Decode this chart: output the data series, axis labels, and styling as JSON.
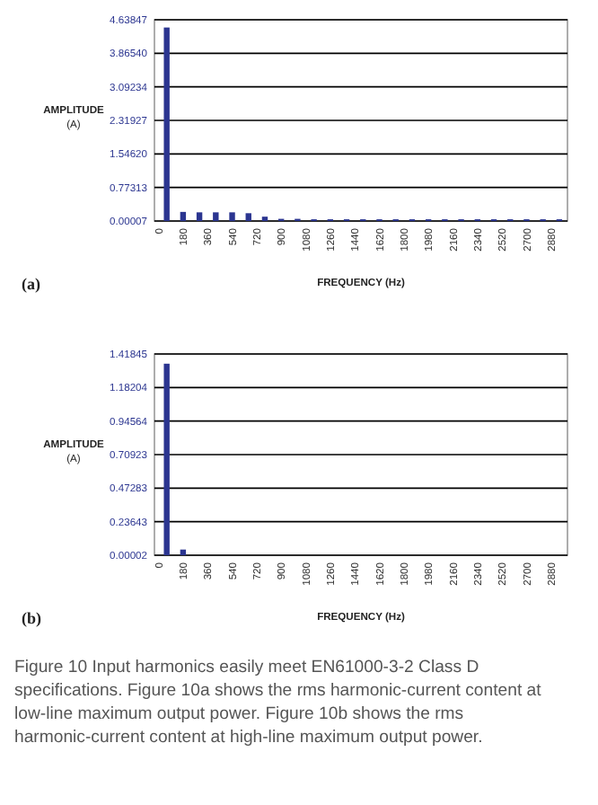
{
  "chart_data": [
    {
      "type": "bar",
      "xlabel": "FREQUENCY (Hz)",
      "ylabel": "AMPLITUDE (A)",
      "color": "#2b3590",
      "grid": "y",
      "x": [
        60,
        180,
        300,
        420,
        540,
        660,
        780,
        900,
        1020,
        1140,
        1260,
        1380,
        1500,
        1620,
        1740,
        1860,
        1980,
        2100,
        2220,
        2340,
        2460,
        2580,
        2700,
        2820,
        2940
      ],
      "values": [
        4.46,
        0.21,
        0.2,
        0.2,
        0.2,
        0.18,
        0.1,
        0.05,
        0.05,
        0.04,
        0.04,
        0.04,
        0.04,
        0.04,
        0.04,
        0.04,
        0.04,
        0.04,
        0.04,
        0.04,
        0.04,
        0.04,
        0.04,
        0.04,
        0.04
      ],
      "xlim": [
        -30,
        3000
      ],
      "xticks": [
        0,
        180,
        360,
        540,
        720,
        900,
        1080,
        1260,
        1440,
        1620,
        1800,
        1980,
        2160,
        2340,
        2520,
        2700,
        2880
      ],
      "ylim": [
        7e-05,
        4.63847
      ],
      "yticks": [
        {
          "value": 7e-05,
          "label": "0.00007"
        },
        0.77313,
        {
          "value": 1.5462,
          "label": "1.54620"
        },
        2.31927,
        3.09234,
        {
          "value": 3.8654,
          "label": "3.86540"
        },
        4.63847
      ],
      "annotations": [
        "(a)"
      ]
    },
    {
      "type": "bar",
      "xlabel": "FREQUENCY (Hz)",
      "ylabel": "AMPLITUDE (A)",
      "color": "#2b3590",
      "grid": "y",
      "x": [
        60,
        180
      ],
      "values": [
        1.35,
        0.04
      ],
      "xlim": [
        -30,
        3000
      ],
      "xticks": [
        0,
        180,
        360,
        540,
        720,
        900,
        1080,
        1260,
        1440,
        1620,
        1800,
        1980,
        2160,
        2340,
        2520,
        2700,
        2880
      ],
      "ylim": [
        2e-05,
        1.41845
      ],
      "yticks": [
        {
          "value": 2e-05,
          "label": "0.00002"
        },
        0.23643,
        0.47283,
        0.70923,
        0.94564,
        1.18204,
        1.41845
      ],
      "annotations": [
        "(b)",
        "Figure 10 Input harmonics easily meet EN61000-3-2 Class D specifications. Figure 10a shows the rms harmonic-current content at low-line maximum output power. Figure 10b shows the rms harmonic-current content at high-line maximum output power."
      ]
    }
  ]
}
